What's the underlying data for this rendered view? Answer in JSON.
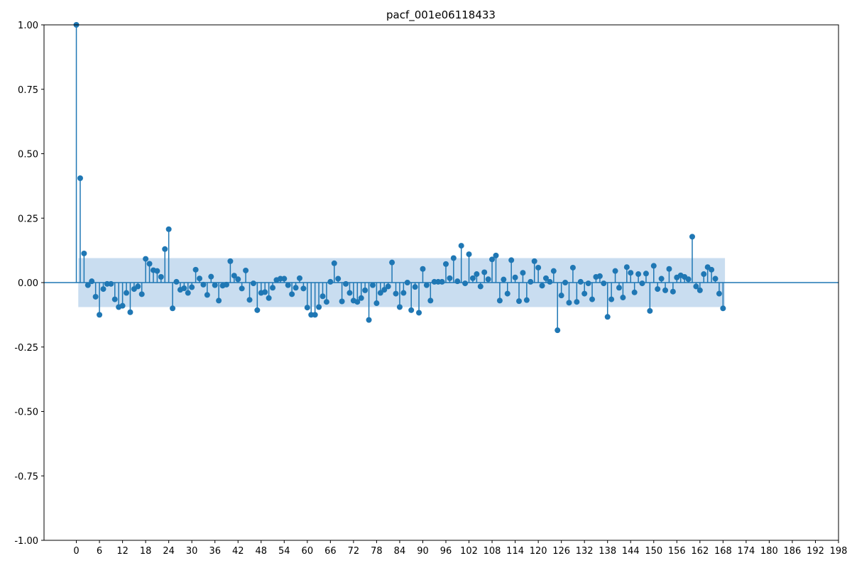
{
  "chart_data": {
    "type": "stem",
    "title": "pacf_001e06118433",
    "xlabel": "",
    "ylabel": "",
    "xlim": [
      -8.4,
      198
    ],
    "ylim": [
      -1.0,
      1.0
    ],
    "x_ticks": [
      0,
      6,
      12,
      18,
      24,
      30,
      36,
      42,
      48,
      54,
      60,
      66,
      72,
      78,
      84,
      90,
      96,
      102,
      108,
      114,
      120,
      126,
      132,
      138,
      144,
      150,
      156,
      162,
      168,
      174,
      180,
      186,
      192,
      198
    ],
    "y_ticks": [
      1.0,
      0.75,
      0.5,
      0.25,
      0.0,
      -0.25,
      -0.5,
      -0.75,
      -1.0
    ],
    "y_tick_labels": [
      "1.00",
      "0.75",
      "0.50",
      "0.25",
      "0.00",
      "-0.25",
      "-0.50",
      "-0.75",
      "-1.00"
    ],
    "confidence_band": {
      "x_range": [
        0.5,
        168.5
      ],
      "upper": 0.095,
      "lower": -0.095
    },
    "grid": false,
    "colors": {
      "stem": "#1f77b4",
      "band": "#c6dbef",
      "axis": "#000000"
    },
    "lags": [
      0,
      1,
      2,
      3,
      4,
      5,
      6,
      7,
      8,
      9,
      10,
      11,
      12,
      13,
      14,
      15,
      16,
      17,
      18,
      19,
      20,
      21,
      22,
      23,
      24,
      25,
      26,
      27,
      28,
      29,
      30,
      31,
      32,
      33,
      34,
      35,
      36,
      37,
      38,
      39,
      40,
      41,
      42,
      43,
      44,
      45,
      46,
      47,
      48,
      49,
      50,
      51,
      52,
      53,
      54,
      55,
      56,
      57,
      58,
      59,
      60,
      61,
      62,
      63,
      64,
      65,
      66,
      67,
      68,
      69,
      70,
      71,
      72,
      73,
      74,
      75,
      76,
      77,
      78,
      79,
      80,
      81,
      82,
      83,
      84,
      85,
      86,
      87,
      88,
      89,
      90,
      91,
      92,
      93,
      94,
      95,
      96,
      97,
      98,
      99,
      100,
      101,
      102,
      103,
      104,
      105,
      106,
      107,
      108,
      109,
      110,
      111,
      112,
      113,
      114,
      115,
      116,
      117,
      118,
      119,
      120,
      121,
      122,
      123,
      124,
      125,
      126,
      127,
      128,
      129,
      130,
      131,
      132,
      133,
      134,
      135,
      136,
      137,
      138,
      139,
      140,
      141,
      142,
      143,
      144,
      145,
      146,
      147,
      148,
      149,
      150,
      151,
      152,
      153,
      154,
      155,
      156,
      157,
      158,
      159,
      160,
      161,
      162,
      163,
      164,
      165,
      166,
      167,
      168
    ],
    "values": [
      1.0,
      0.405,
      0.113,
      -0.01,
      0.005,
      -0.055,
      -0.125,
      -0.025,
      -0.005,
      -0.005,
      -0.065,
      -0.095,
      -0.09,
      -0.04,
      -0.115,
      -0.025,
      -0.015,
      -0.045,
      0.092,
      0.073,
      0.048,
      0.045,
      0.022,
      0.13,
      0.207,
      -0.1,
      0.003,
      -0.028,
      -0.022,
      -0.04,
      -0.018,
      0.05,
      0.016,
      -0.008,
      -0.048,
      0.023,
      -0.01,
      -0.07,
      -0.012,
      -0.008,
      0.083,
      0.027,
      0.013,
      -0.023,
      0.047,
      -0.067,
      -0.003,
      -0.107,
      -0.04,
      -0.037,
      -0.06,
      -0.02,
      0.01,
      0.015,
      0.015,
      -0.01,
      -0.045,
      -0.02,
      0.017,
      -0.023,
      -0.097,
      -0.125,
      -0.125,
      -0.095,
      -0.053,
      -0.075,
      0.003,
      0.075,
      0.015,
      -0.073,
      -0.005,
      -0.04,
      -0.07,
      -0.075,
      -0.06,
      -0.03,
      -0.145,
      -0.01,
      -0.08,
      -0.04,
      -0.028,
      -0.015,
      0.078,
      -0.043,
      -0.095,
      -0.04,
      0.0,
      -0.107,
      -0.017,
      -0.117,
      0.053,
      -0.01,
      -0.07,
      0.003,
      0.003,
      0.003,
      0.072,
      0.017,
      0.095,
      0.005,
      0.143,
      -0.003,
      0.11,
      0.017,
      0.033,
      -0.015,
      0.04,
      0.013,
      0.09,
      0.105,
      -0.07,
      0.012,
      -0.043,
      0.087,
      0.02,
      -0.072,
      0.038,
      -0.068,
      0.003,
      0.083,
      0.058,
      -0.012,
      0.017,
      0.003,
      0.045,
      -0.185,
      -0.05,
      0.0,
      -0.078,
      0.058,
      -0.075,
      0.003,
      -0.043,
      -0.003,
      -0.065,
      0.022,
      0.025,
      -0.003,
      -0.133,
      -0.065,
      0.045,
      -0.02,
      -0.058,
      0.06,
      0.038,
      -0.038,
      0.033,
      -0.003,
      0.035,
      -0.11,
      0.065,
      -0.025,
      0.015,
      -0.03,
      0.053,
      -0.035,
      0.02,
      0.028,
      0.022,
      0.013,
      0.178,
      -0.015,
      -0.03,
      0.033,
      0.06,
      0.05,
      0.015,
      -0.043,
      -0.1
    ]
  }
}
